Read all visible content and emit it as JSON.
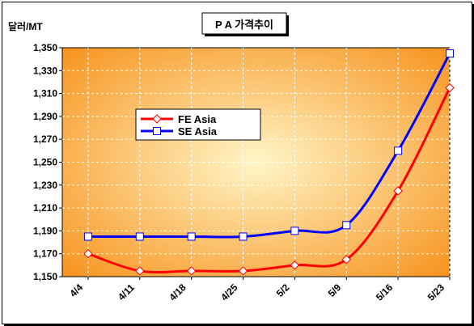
{
  "chart_data": {
    "type": "line",
    "title": "P A 가격추이",
    "ylabel": "달러/MT",
    "xlabel": "",
    "categories": [
      "4/4",
      "4/11",
      "4/18",
      "4/25",
      "5/2",
      "5/9",
      "5/16",
      "5/23"
    ],
    "series": [
      {
        "name": "FE Asia",
        "values": [
          1170,
          1155,
          1155,
          1155,
          1160,
          1165,
          1225,
          1315
        ],
        "color": "#ff0000",
        "marker": "diamond"
      },
      {
        "name": "SE Asia",
        "values": [
          1185,
          1185,
          1185,
          1185,
          1190,
          1195,
          1260,
          1345
        ],
        "color": "#0000ff",
        "marker": "square"
      }
    ],
    "ylim": [
      1150,
      1350
    ],
    "yticks": [
      "1,150",
      "1,170",
      "1,190",
      "1,210",
      "1,230",
      "1,250",
      "1,270",
      "1,290",
      "1,310",
      "1,330",
      "1,350"
    ],
    "grid": true,
    "legend": "upper-left",
    "colors": {
      "plot_center": "#fff6c8",
      "plot_edge": "#f7931e"
    }
  }
}
